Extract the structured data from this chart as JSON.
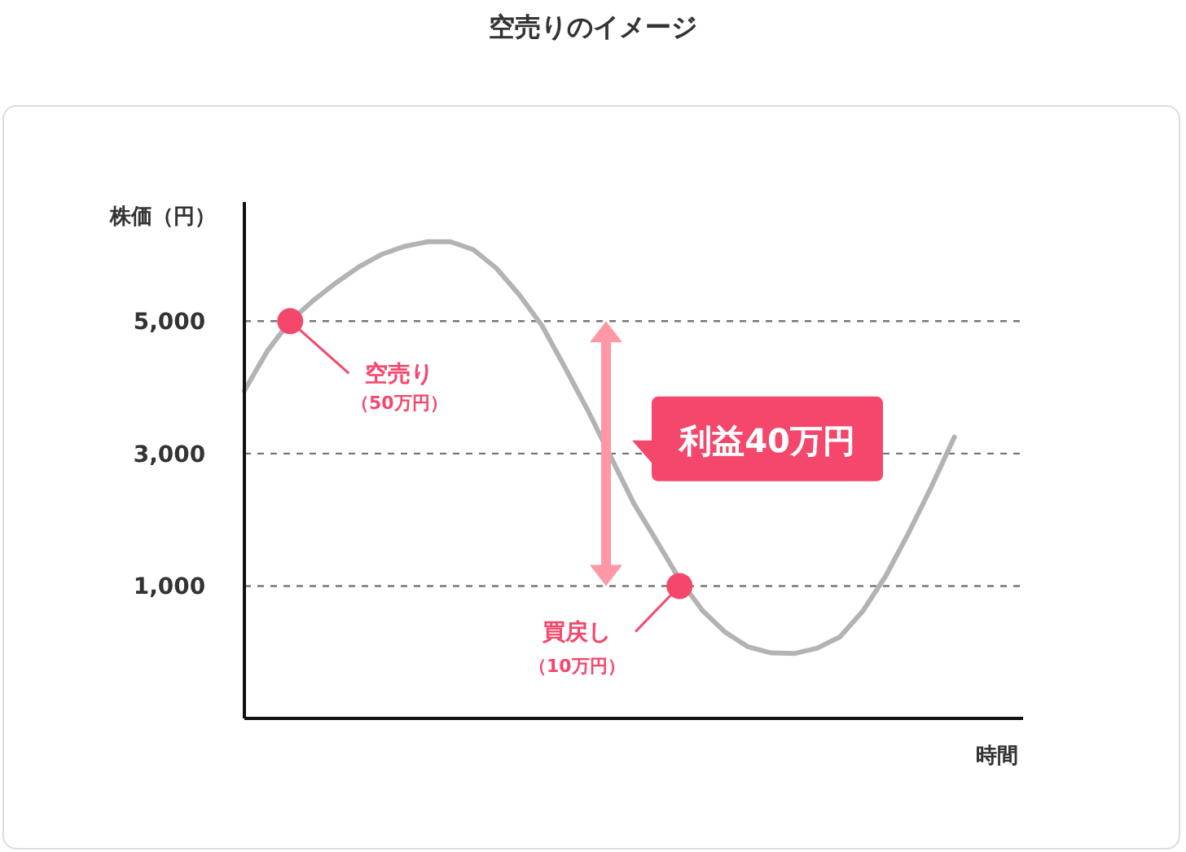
{
  "chart_data": {
    "type": "line",
    "title": "空売りのイメージ",
    "xlabel": "時間",
    "ylabel": "株価（円）",
    "categories": [
      null,
      null,
      null,
      null,
      null,
      null,
      null,
      null,
      null,
      null,
      null,
      null,
      null,
      null,
      null,
      null,
      null,
      null,
      null,
      null,
      null,
      null,
      null,
      null,
      null,
      null,
      null,
      null,
      null,
      null,
      null,
      null,
      null,
      null,
      null
    ],
    "series": [
      {
        "color": "#b3b3b3",
        "values": [
          3950,
          4550,
          5000,
          5310,
          5580,
          5820,
          6010,
          6130,
          6200,
          6200,
          6080,
          5800,
          5400,
          4930,
          4300,
          3650,
          2950,
          2250,
          1680,
          1100,
          630,
          300,
          80,
          -10,
          -20,
          60,
          230,
          620,
          1150,
          1800,
          2500,
          3250,
          null,
          null,
          null
        ]
      },
      {
        "type": "scatter",
        "color": "#f4476b",
        "marker": "circle",
        "values": [
          null,
          null,
          5000,
          null,
          null,
          null,
          null,
          null,
          null,
          null,
          null,
          null,
          null,
          null,
          null,
          null,
          null,
          null,
          null,
          1000,
          null,
          null,
          null,
          null,
          null,
          null,
          null,
          null,
          null,
          null,
          null,
          null,
          null,
          null,
          null
        ]
      }
    ],
    "ylim": [
      -1000,
      6800
    ],
    "yticks": [
      {
        "value": 1000,
        "label": "1,000"
      },
      {
        "value": 3000,
        "label": "3,000"
      },
      {
        "value": 5000,
        "label": "5,000"
      }
    ],
    "grid": "y",
    "annotations": [
      "空売り",
      "（50万円）",
      "買戻し",
      "（10万円）",
      "利益40万円"
    ]
  }
}
